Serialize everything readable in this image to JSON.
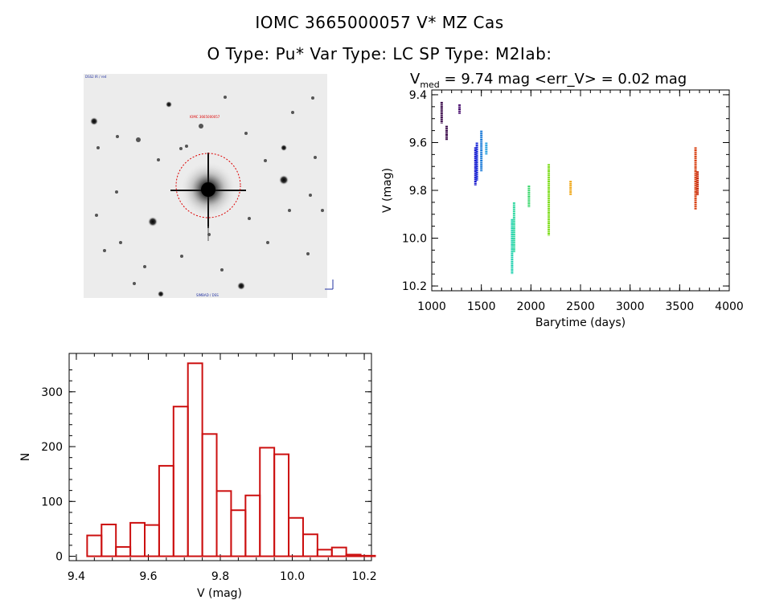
{
  "header": {
    "line1": "IOMC 3665000057    V* MZ Cas",
    "line2": "O Type: Pu*   Var Type: LC   SP Type: M2Iab:"
  },
  "sky_image": {
    "top_left_label": "DSS2 IR / red",
    "circle_label": "IOMC 3665000057",
    "bottom_label": "SIMBAD / DSS",
    "circle_color": "#dd0000"
  },
  "chart_data": [
    {
      "type": "scatter",
      "title_prefix": "V",
      "title_sub": "med",
      "title_rest": " = 9.74 mag <err_V> = 0.02 mag",
      "xlabel": "Barytime (days)",
      "ylabel": "V (mag)",
      "xlim": [
        1000,
        4000
      ],
      "ylim": [
        10.22,
        9.38
      ],
      "xticks": [
        1000,
        1500,
        2000,
        2500,
        3000,
        3500,
        4000
      ],
      "yticks": [
        9.4,
        9.6,
        9.8,
        10.0,
        10.2
      ],
      "ytick_labels": [
        "9.4",
        "9.6",
        "9.8",
        "10.0",
        "10.2"
      ],
      "grid": false,
      "segments": [
        {
          "x": 1100,
          "y0": 9.43,
          "y1": 9.52,
          "color": "#3a0a4a"
        },
        {
          "x": 1150,
          "y0": 9.53,
          "y1": 9.59,
          "color": "#3a0a4a"
        },
        {
          "x": 1280,
          "y0": 9.44,
          "y1": 9.48,
          "color": "#4a1070"
        },
        {
          "x": 1440,
          "y0": 9.62,
          "y1": 9.78,
          "color": "#1a1acc"
        },
        {
          "x": 1455,
          "y0": 9.6,
          "y1": 9.76,
          "color": "#1a2ad8"
        },
        {
          "x": 1500,
          "y0": 9.55,
          "y1": 9.72,
          "color": "#1a7ad8"
        },
        {
          "x": 1550,
          "y0": 9.6,
          "y1": 9.65,
          "color": "#2aa0e0"
        },
        {
          "x": 1810,
          "y0": 9.92,
          "y1": 10.15,
          "color": "#20d0b0"
        },
        {
          "x": 1830,
          "y0": 9.85,
          "y1": 10.06,
          "color": "#30d8a0"
        },
        {
          "x": 1980,
          "y0": 9.78,
          "y1": 9.87,
          "color": "#40d870"
        },
        {
          "x": 2180,
          "y0": 9.69,
          "y1": 9.99,
          "color": "#80dd20"
        },
        {
          "x": 2400,
          "y0": 9.76,
          "y1": 9.82,
          "color": "#f0a818"
        },
        {
          "x": 3660,
          "y0": 9.62,
          "y1": 9.88,
          "color": "#d84010"
        },
        {
          "x": 3680,
          "y0": 9.72,
          "y1": 9.82,
          "color": "#c82808"
        }
      ]
    },
    {
      "type": "bar",
      "xlabel": "V (mag)",
      "ylabel": "N",
      "xlim": [
        9.38,
        10.22
      ],
      "ylim": [
        -8,
        370
      ],
      "xticks": [
        9.4,
        9.6,
        9.8,
        10.0,
        10.2
      ],
      "xtick_labels": [
        "9.4",
        "9.6",
        "9.8",
        "10.0",
        "10.2"
      ],
      "yticks": [
        0,
        100,
        200,
        300
      ],
      "bin_width": 0.04,
      "bins_start": 9.43,
      "values": [
        38,
        58,
        17,
        61,
        57,
        165,
        273,
        352,
        223,
        119,
        84,
        111,
        198,
        186,
        70,
        40,
        12,
        16,
        3,
        1
      ],
      "color": "#cc1010"
    }
  ]
}
